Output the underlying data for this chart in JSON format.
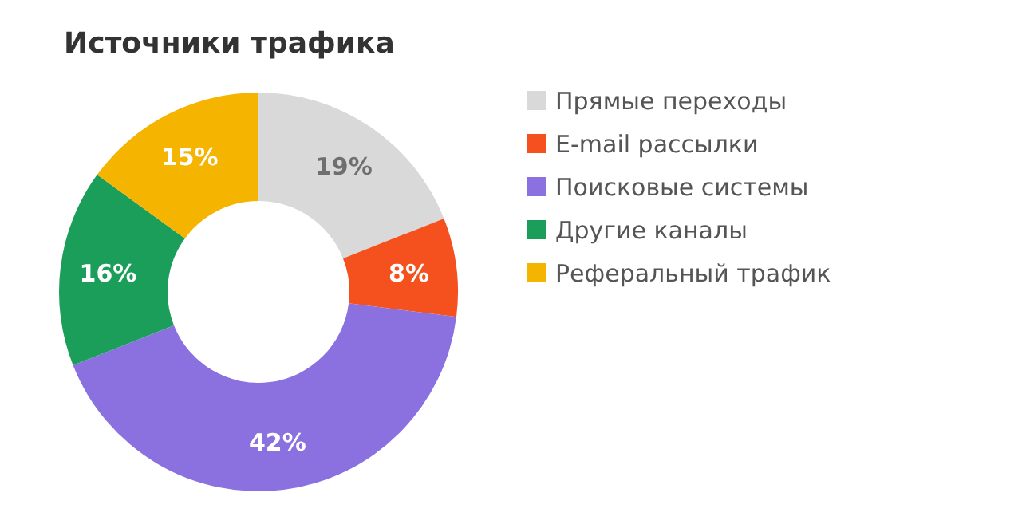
{
  "chart_data": {
    "type": "donut",
    "title": "Источники трафика",
    "categories": [
      "Прямые переходы",
      "E-mail рассылки",
      "Поисковые системы",
      "Другие каналы",
      "Реферальный трафик"
    ],
    "values": [
      19,
      8,
      42,
      16,
      15
    ],
    "colors": [
      "#d9d9d9",
      "#f4511e",
      "#8b70e0",
      "#1b9e5a",
      "#f5b400"
    ],
    "value_labels": [
      "19%",
      "8%",
      "42%",
      "16%",
      "15%"
    ],
    "legend": "right"
  }
}
